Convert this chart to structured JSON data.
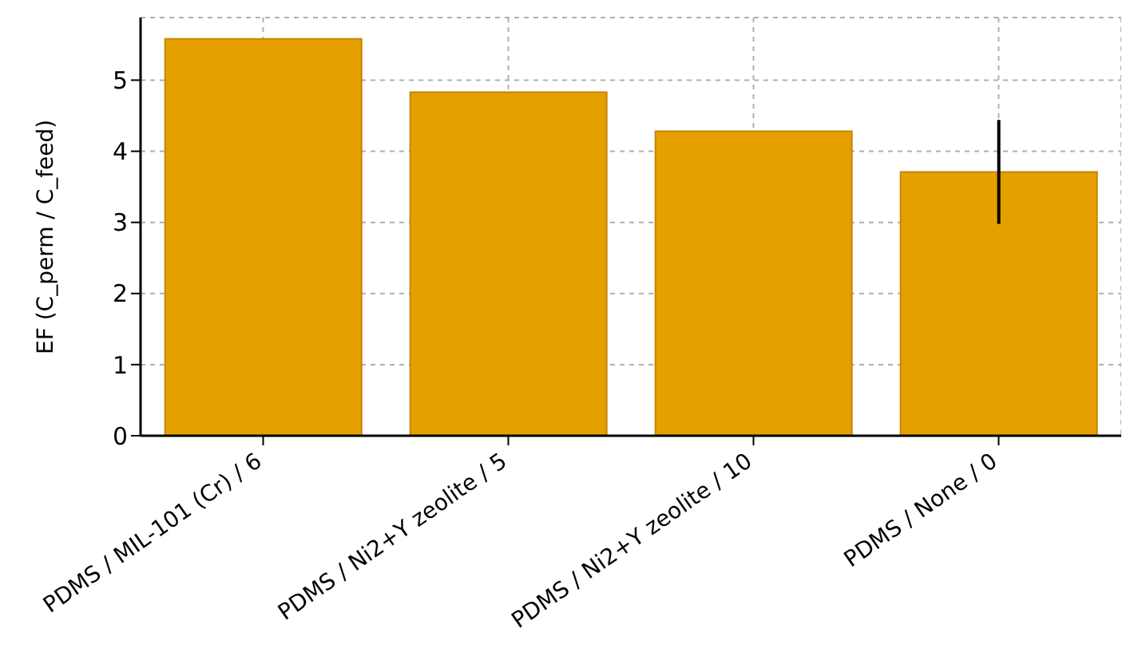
{
  "chart_data": {
    "type": "bar",
    "ylabel": "EF (C_perm / C_feed)",
    "categories": [
      "PDMS / MIL-101 (Cr) / 6",
      "PDMS / Ni2+Y zeolite / 5",
      "PDMS / Ni2+Y zeolite / 10",
      "PDMS / None / 0"
    ],
    "values": [
      5.58,
      4.83,
      4.28,
      3.71
    ],
    "errors": [
      null,
      null,
      null,
      0.73
    ],
    "color": "#e5a000",
    "ylim": [
      0,
      5.88
    ],
    "yticks": [
      0,
      1,
      2,
      3,
      4,
      5
    ],
    "grid": true
  }
}
